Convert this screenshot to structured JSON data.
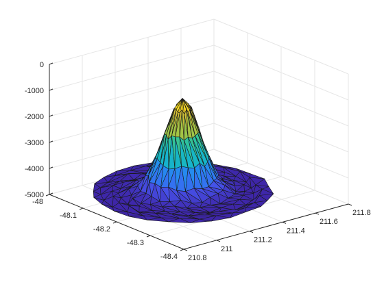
{
  "chart_data": {
    "type": "surface",
    "colormap": "parula",
    "grid": true,
    "title": "",
    "xlabel": "",
    "ylabel": "",
    "zlabel": "",
    "xlim": [
      210.8,
      211.8
    ],
    "ylim": [
      -48.4,
      -48.0
    ],
    "zlim": [
      -5000,
      0
    ],
    "x_ticks": [
      "210.8",
      "211",
      "211.2",
      "211.4",
      "211.6",
      "211.8"
    ],
    "y_ticks": [
      "-48",
      "-48.1",
      "-48.2",
      "-48.3",
      "-48.4"
    ],
    "z_ticks": [
      "0",
      "-1000",
      "-2000",
      "-3000",
      "-4000",
      "-5000"
    ],
    "surface": {
      "description": "triangulated seamount bathymetry, depth z (m) over longitude x and latitude y",
      "peak": {
        "x": 211.2,
        "y": -48.2,
        "z": -950
      },
      "base_depth": -4550,
      "footprint_radius_x": 0.42,
      "footprint_radius_y": 0.17
    }
  }
}
